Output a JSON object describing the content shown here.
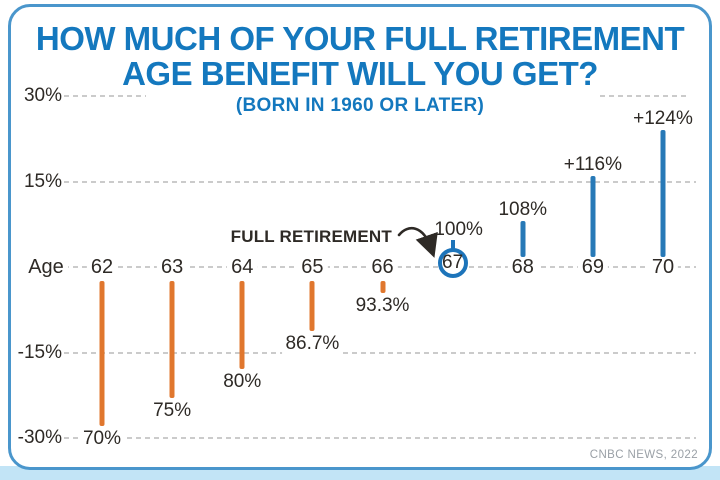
{
  "header": {
    "title_lines": [
      "HOW MUCH OF YOUR FULL RETIREMENT",
      "AGE BENEFIT WILL YOU GET?"
    ],
    "subtitle": "(BORN IN 1960 OR LATER)"
  },
  "chart_data": {
    "type": "bar",
    "title": "HOW MUCH OF YOUR FULL RETIREMENT AGE BENEFIT WILL YOU GET?",
    "subtitle": "(BORN IN 1960 OR LATER)",
    "xlabel": "Age",
    "categories": [
      "62",
      "63",
      "64",
      "65",
      "66",
      "67",
      "68",
      "69",
      "70"
    ],
    "values": [
      70,
      75,
      80,
      86.7,
      93.3,
      100,
      108,
      116,
      124
    ],
    "value_labels": [
      "70%",
      "75%",
      "80%",
      "86.7%",
      "93.3%",
      "100%",
      "108%",
      "+116%",
      "+124%"
    ],
    "baseline": 100,
    "ylim": [
      70,
      130
    ],
    "y_ticks": [
      {
        "label": "30%",
        "offset": 30
      },
      {
        "label": "15%",
        "offset": 15
      },
      {
        "label": "-15%",
        "offset": -15
      },
      {
        "label": "-30%",
        "offset": -30
      }
    ],
    "grid": "dashed horizontal",
    "legend": null,
    "highlight_category": "67",
    "annotation": {
      "text": "FULL RETIREMENT",
      "target_category": "67",
      "target_value": "100%"
    },
    "colors": {
      "reduced_bar": "#E0772E",
      "increased_bar": "#2779B7",
      "highlight_ring": "#1D74BA",
      "title": "#1478BE",
      "border": "#4A96CC",
      "grid": "#CBCBCB",
      "text": "#2E2A26",
      "bottom_strip": "#C2E4F6"
    },
    "source": "CNBC NEWS, 2022"
  },
  "footer": {
    "source": "CNBC NEWS, 2022"
  }
}
